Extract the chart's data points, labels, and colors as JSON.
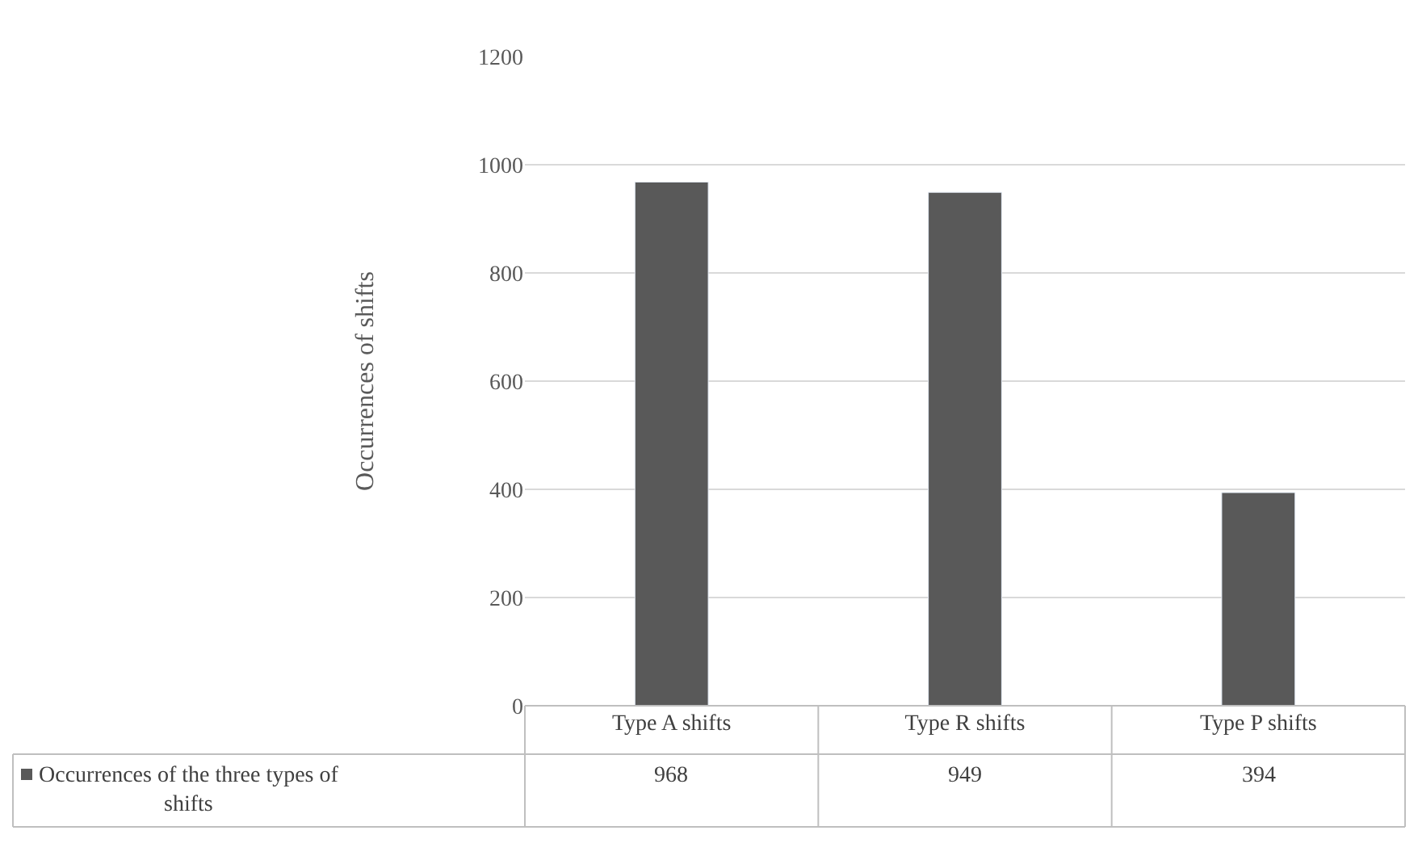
{
  "chart_data": {
    "type": "bar",
    "ylabel": "Occurrences of shifts",
    "categories": [
      "Type A shifts",
      "Type R shifts",
      "Type P shifts"
    ],
    "series": [
      {
        "name": "Occurrences of the three types of shifts",
        "color": "#595959",
        "values": [
          968,
          949,
          394
        ]
      }
    ],
    "ylim": [
      0,
      1200
    ],
    "yticks": [
      0,
      200,
      400,
      600,
      800,
      1000,
      1200
    ],
    "grid": "y",
    "data_labels": true,
    "legend": "bottom left"
  }
}
